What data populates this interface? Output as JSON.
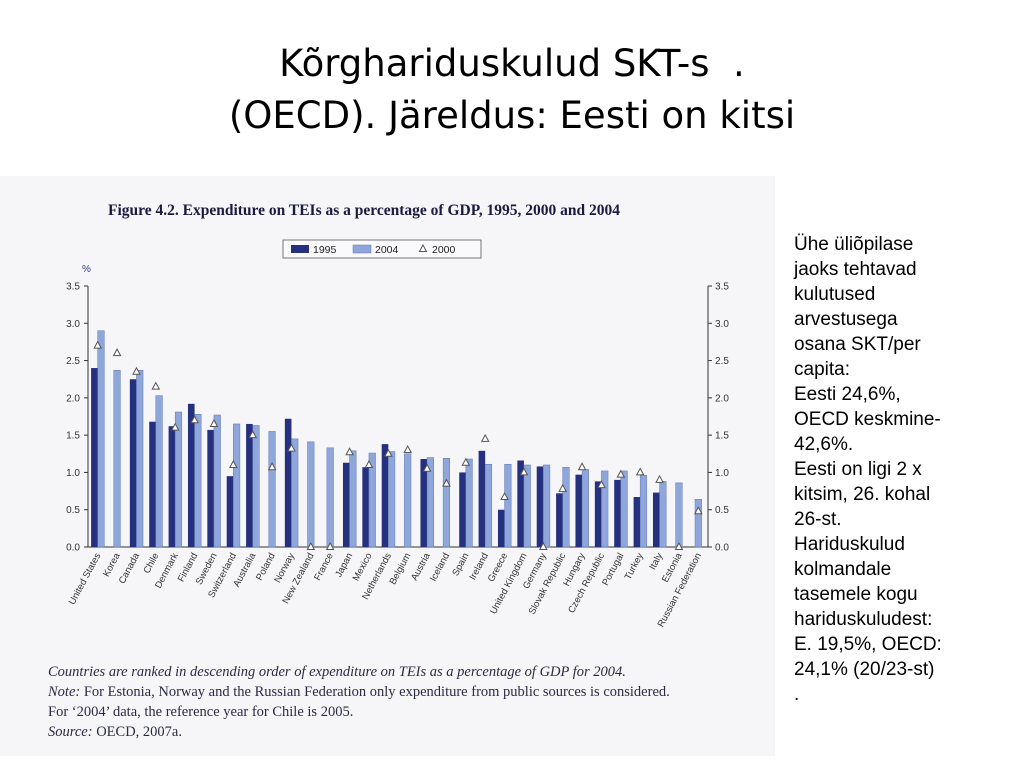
{
  "slide": {
    "title_lines": [
      "Kõrghariduskulud SKT-s  .",
      "(OECD). Järeldus: Eesti on kitsi"
    ]
  },
  "side_text": {
    "lines": [
      "Ühe üliõpilase",
      "jaoks tehtavad",
      "kulutused",
      "arvestusega",
      "osana SKT/per",
      "capita:",
      "Eesti 24,6%,",
      "OECD keskmine-",
      "42,6%.",
      "Eesti on ligi 2 x",
      "kitsim,  26. kohal",
      "26-st.",
      "Hariduskulud",
      "kolmandale",
      "tasemele kogu",
      "hariduskuludest:",
      "E. 19,5%, OECD:",
      "24,1% (20/23-st)",
      "."
    ]
  },
  "figure": {
    "title": "Figure 4.2. Expenditure on TEIs as a percentage of GDP, 1995, 2000 and 2004",
    "notes": {
      "ranking": "Countries are ranked in descending order of expenditure on TEIs as a percentage of GDP for 2004.",
      "note_label": "Note:",
      "note_text": "For Estonia, Norway and the Russian Federation only expenditure from public sources is considered.",
      "note_text_2": "For ‘2004’ data, the reference year for Chile is 2005.",
      "source_label": "Source:",
      "source_text": "OECD, 2007a."
    }
  },
  "chart_data": {
    "type": "bar",
    "title": "Figure 4.2. Expenditure on TEIs as a percentage of GDP, 1995, 2000 and 2004",
    "ylabel": "%",
    "ylim": [
      0,
      3.5
    ],
    "yticks": [
      "0.0",
      "0.5",
      "1.0",
      "1.5",
      "2.0",
      "2.5",
      "3.0",
      "3.5"
    ],
    "legend_position": "top-center",
    "grid": false,
    "categories": [
      "United States",
      "Korea",
      "Canada",
      "Chile",
      "Denmark",
      "Finland",
      "Sweden",
      "Switzerland",
      "Australia",
      "Poland",
      "Norway",
      "New Zealand",
      "France",
      "Japan",
      "Mexico",
      "Netherlands",
      "Belgium",
      "Austria",
      "Iceland",
      "Spain",
      "Ireland",
      "Greece",
      "United Kingdom",
      "Germany",
      "Slovak Republic",
      "Hungary",
      "Czech Republic",
      "Portugal",
      "Turkey",
      "Italy",
      "Estonia",
      "Russian Federation"
    ],
    "series": [
      {
        "name": "1995",
        "style": "bar",
        "color": "#25307e",
        "values": [
          2.4,
          null,
          2.25,
          1.68,
          1.62,
          1.92,
          1.57,
          0.95,
          1.65,
          null,
          1.72,
          null,
          null,
          1.13,
          1.07,
          1.38,
          null,
          1.18,
          null,
          1.0,
          1.29,
          0.5,
          1.16,
          1.08,
          0.72,
          0.97,
          0.88,
          0.9,
          0.67,
          0.73,
          null,
          null
        ]
      },
      {
        "name": "2004",
        "style": "bar",
        "color": "#8ea6da",
        "values": [
          2.9,
          2.37,
          2.37,
          2.03,
          1.81,
          1.78,
          1.77,
          1.65,
          1.63,
          1.55,
          1.45,
          1.41,
          1.33,
          1.29,
          1.26,
          1.28,
          1.25,
          1.2,
          1.19,
          1.18,
          1.11,
          1.11,
          1.1,
          1.1,
          1.07,
          1.04,
          1.02,
          1.02,
          0.96,
          0.88,
          0.86,
          0.64
        ]
      },
      {
        "name": "2000",
        "style": "marker",
        "color": "#555555",
        "values": [
          2.7,
          2.6,
          2.35,
          2.15,
          1.6,
          1.7,
          1.65,
          1.1,
          1.5,
          1.07,
          1.32,
          0.0,
          0.0,
          1.27,
          1.1,
          1.25,
          1.3,
          1.05,
          0.85,
          1.13,
          1.45,
          0.67,
          1.0,
          0.0,
          0.78,
          1.07,
          0.83,
          0.97,
          1.0,
          0.9,
          0.0,
          0.48
        ]
      }
    ]
  }
}
